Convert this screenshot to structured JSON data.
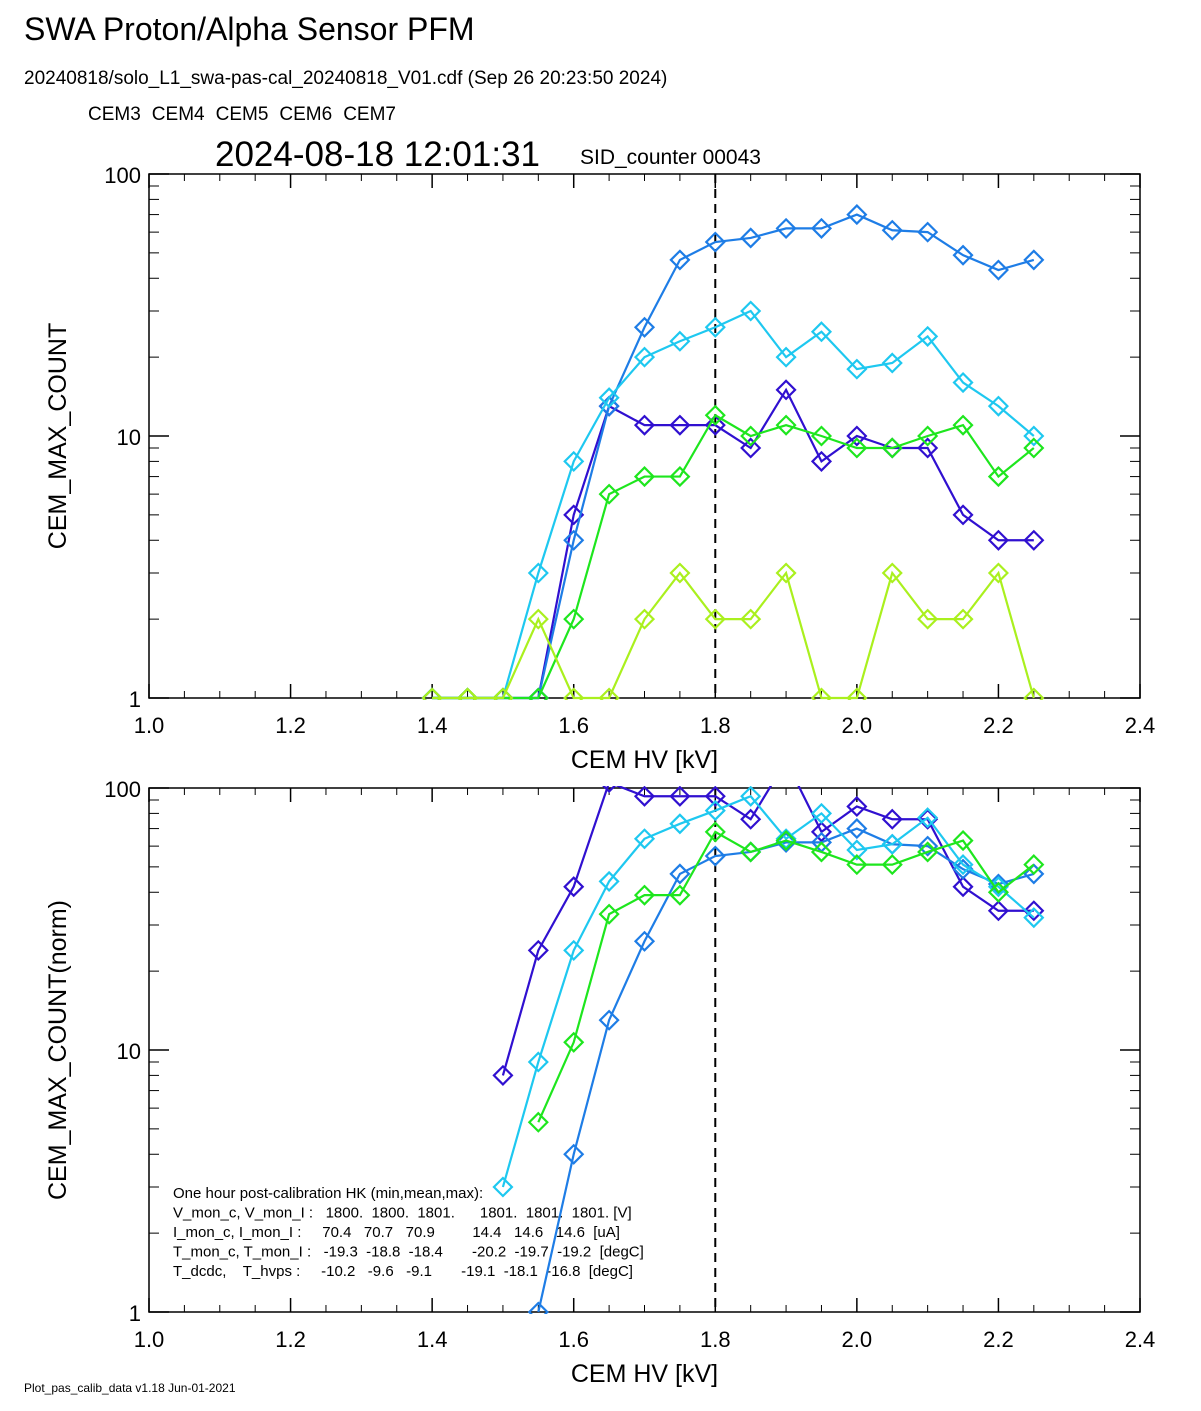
{
  "header": {
    "title": "SWA Proton/Alpha Sensor PFM",
    "subtitle": "20240818/solo_L1_swa-pas-cal_20240818_V01.cdf  (Sep 26 20:23:50 2024)",
    "timestamp": "2024-08-18 12:01:31",
    "counter": "SID_counter 00043"
  },
  "footer": "Plot_pas_calib_data v1.18 Jun-01-2021",
  "chart_data": [
    {
      "type": "line",
      "x_label": "CEM HV [kV]",
      "y_label": "CEM_MAX_COUNT",
      "ylog": true,
      "vline": 1.8,
      "x": [
        1.4,
        1.45,
        1.5,
        1.55,
        1.6,
        1.65,
        1.7,
        1.75,
        1.8,
        1.85,
        1.9,
        1.95,
        2.0,
        2.05,
        2.1,
        2.15,
        2.2,
        2.25
      ],
      "xlim": [
        1.0,
        2.4
      ],
      "xticks": [
        {
          "value": 1.0,
          "label": "1.0"
        },
        1.2,
        1.4,
        1.6,
        1.8,
        {
          "value": 2.0,
          "label": "2.0"
        },
        2.2,
        2.4
      ],
      "ylim": [
        1,
        100
      ],
      "yticks": [
        1,
        10,
        100
      ],
      "series": [
        {
          "name": "CEM3",
          "color": "#3010d0",
          "values": [
            1,
            1,
            1,
            1,
            5,
            13,
            11,
            11,
            11,
            9,
            15,
            8,
            10,
            9,
            9,
            5,
            4,
            4
          ]
        },
        {
          "name": "CEM4",
          "color": "#1e7de6",
          "values": [
            1,
            1,
            1,
            1,
            4,
            13,
            26,
            47,
            55,
            57,
            62,
            62,
            70,
            61,
            60,
            49,
            43,
            47
          ]
        },
        {
          "name": "CEM5",
          "color": "#1ec8f0",
          "values": [
            1,
            1,
            1,
            3,
            8,
            14,
            20,
            23,
            26,
            30,
            20,
            25,
            18,
            19,
            24,
            16,
            13,
            10
          ]
        },
        {
          "name": "CEM6",
          "color": "#1ee61e",
          "values": [
            1,
            1,
            1,
            1,
            2,
            6,
            7,
            7,
            12,
            10,
            11,
            10,
            9,
            9,
            10,
            11,
            7,
            9
          ]
        },
        {
          "name": "CEM7",
          "color": "#aaf01e",
          "values": [
            1,
            1,
            1,
            2,
            1,
            1,
            2,
            3,
            2,
            2,
            3,
            1,
            1,
            3,
            2,
            2,
            3,
            1
          ]
        }
      ]
    },
    {
      "type": "line",
      "x_label": "CEM HV [kV]",
      "y_label": "CEM_MAX_COUNT(norm)",
      "ylog": true,
      "vline": 1.8,
      "x": [
        1.4,
        1.45,
        1.5,
        1.55,
        1.6,
        1.65,
        1.7,
        1.75,
        1.8,
        1.85,
        1.9,
        1.95,
        2.0,
        2.05,
        2.1,
        2.15,
        2.2,
        2.25
      ],
      "xlim": [
        1.0,
        2.4
      ],
      "xticks": [
        {
          "value": 1.0,
          "label": "1.0"
        },
        1.2,
        1.4,
        1.6,
        1.8,
        {
          "value": 2.0,
          "label": "2.0"
        },
        2.2,
        2.4
      ],
      "ylim": [
        1,
        100
      ],
      "yticks": [
        1,
        10,
        100
      ],
      "series": [
        {
          "color": "#3010d0",
          "values": [
            null,
            null,
            8,
            24,
            42,
            105,
            93,
            93,
            93,
            76,
            127,
            68,
            85,
            76,
            76,
            42,
            34,
            34
          ]
        },
        {
          "color": "#1e7de6",
          "values": [
            null,
            null,
            null,
            1,
            4,
            13,
            26,
            47,
            55,
            57,
            62,
            62,
            70,
            61,
            60,
            49,
            43,
            47
          ]
        },
        {
          "color": "#1ec8f0",
          "values": [
            null,
            null,
            3,
            9,
            24,
            44,
            64,
            73,
            82,
            93,
            64,
            80,
            58,
            61,
            77,
            51,
            42,
            32
          ]
        },
        {
          "color": "#1ee61e",
          "values": [
            null,
            null,
            null,
            5.3,
            10.7,
            33,
            39,
            39,
            68,
            57,
            63,
            57,
            51,
            51,
            57,
            63,
            40,
            51
          ]
        }
      ],
      "notes": [
        "One hour post-calibration HK (min,mean,max):",
        "V_mon_c, V_mon_I :   1800.  1800.  1801.      1801.  1801.  1801. [V]",
        "I_mon_c, I_mon_I :     70.4   70.7   70.9         14.4   14.6   14.6  [uA]",
        "T_mon_c, T_mon_I :   -19.3  -18.8  -18.4       -20.2  -19.7  -19.2  [degC]",
        "T_dcdc,    T_hvps :     -10.2   -9.6   -9.1       -19.1  -18.1  -16.8  [degC]"
      ]
    }
  ]
}
